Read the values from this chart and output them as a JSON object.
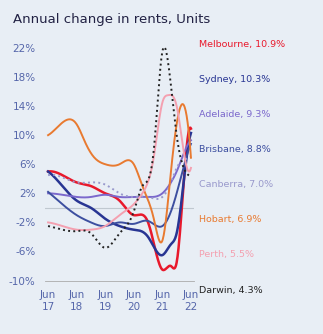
{
  "title": "Annual change in rents, Units",
  "background_color": "#e8eef5",
  "ylim": [
    -10,
    24
  ],
  "yticks": [
    -10,
    -6,
    -2,
    2,
    6,
    10,
    14,
    18,
    22
  ],
  "xlabel_years": [
    "Jun\n17",
    "Jun\n18",
    "Jun\n19",
    "Jun\n20",
    "Jun\n21",
    "Jun\n22"
  ],
  "series": {
    "Melbourne": {
      "color": "#e8192c",
      "label": "Melbourne, 10.9%",
      "label_color": "#e8192c",
      "linestyle": "solid",
      "linewidth": 1.8,
      "x": [
        0,
        0.5,
        1,
        1.5,
        2,
        2.5,
        3,
        3.5,
        4,
        4.3,
        4.5,
        4.7,
        5
      ],
      "y": [
        5.0,
        4.5,
        3.5,
        3.0,
        2.0,
        1.0,
        -1.0,
        -2.0,
        -8.5,
        -8.0,
        -7.5,
        1.0,
        10.9
      ]
    },
    "Sydney": {
      "color": "#283593",
      "label": "Sydney, 10.3%",
      "label_color": "#283593",
      "linestyle": "solid",
      "linewidth": 1.8,
      "x": [
        0,
        0.5,
        1,
        1.5,
        2,
        2.5,
        3,
        3.5,
        4,
        4.3,
        4.5,
        4.7,
        5
      ],
      "y": [
        5.0,
        3.0,
        1.0,
        0.0,
        -1.5,
        -2.5,
        -3.0,
        -4.0,
        -6.5,
        -5.0,
        -3.5,
        2.0,
        10.3
      ]
    },
    "Adelaide": {
      "color": "#7b68cc",
      "label": "Adelaide, 9.3%",
      "label_color": "#7b68cc",
      "linestyle": "solid",
      "linewidth": 1.4,
      "x": [
        0,
        0.5,
        1,
        1.5,
        2,
        2.5,
        3,
        3.5,
        4,
        4.3,
        4.5,
        4.7,
        5
      ],
      "y": [
        2.0,
        1.8,
        1.5,
        1.5,
        1.8,
        1.5,
        1.5,
        1.5,
        2.0,
        3.5,
        5.0,
        7.0,
        9.3
      ]
    },
    "Brisbane": {
      "color": "#3d4fa0",
      "label": "Brisbane, 8.8%",
      "label_color": "#3d4fa0",
      "linestyle": "solid",
      "linewidth": 1.4,
      "x": [
        0,
        0.5,
        1,
        1.5,
        2,
        2.5,
        3,
        3.5,
        4,
        4.3,
        4.5,
        4.7,
        5
      ],
      "y": [
        2.2,
        0.5,
        -1.0,
        -2.0,
        -2.5,
        -2.0,
        -2.2,
        -1.8,
        -2.5,
        -0.5,
        2.0,
        5.0,
        8.8
      ]
    },
    "Canberra": {
      "color": "#9999cc",
      "label": "Canberra, 7.0%",
      "label_color": "#9999cc",
      "linestyle": "dotted",
      "linewidth": 1.4,
      "x": [
        0,
        0.5,
        1,
        1.5,
        2,
        2.5,
        3,
        3.5,
        4,
        4.3,
        4.5,
        4.7,
        5
      ],
      "y": [
        4.5,
        4.2,
        3.5,
        3.5,
        3.2,
        2.0,
        1.5,
        1.5,
        1.5,
        3.5,
        5.5,
        6.5,
        7.0
      ]
    },
    "Hobart": {
      "color": "#e87a30",
      "label": "Hobart, 6.9%",
      "label_color": "#e87a30",
      "linestyle": "solid",
      "linewidth": 1.4,
      "x": [
        0,
        0.3,
        0.6,
        1,
        1.3,
        1.6,
        2,
        2.5,
        3,
        3.3,
        3.7,
        4,
        4.3,
        4.6,
        5
      ],
      "y": [
        10.0,
        11.0,
        12.0,
        11.5,
        9.0,
        7.0,
        6.0,
        6.0,
        6.0,
        3.0,
        -1.5,
        -4.5,
        5.0,
        13.5,
        6.9
      ]
    },
    "Perth": {
      "color": "#f4a0b0",
      "label": "Perth, 5.5%",
      "label_color": "#f4a0b0",
      "linestyle": "solid",
      "linewidth": 1.4,
      "x": [
        0,
        0.5,
        1,
        1.5,
        2,
        2.5,
        3,
        3.3,
        3.7,
        4,
        4.2,
        4.5,
        4.7,
        5
      ],
      "y": [
        -2.0,
        -2.5,
        -3.0,
        -3.0,
        -2.5,
        -1.0,
        0.5,
        2.0,
        7.0,
        14.5,
        15.5,
        14.0,
        9.0,
        5.5
      ]
    },
    "Darwin": {
      "color": "#222222",
      "label": "Darwin, 4.3%",
      "label_color": "#222222",
      "linestyle": "dotted",
      "linewidth": 1.4,
      "x": [
        0,
        0.5,
        1,
        1.5,
        2,
        2.5,
        3,
        3.3,
        3.7,
        4,
        4.2,
        4.5,
        4.7,
        5
      ],
      "y": [
        -2.5,
        -3.0,
        -3.2,
        -3.5,
        -5.5,
        -3.5,
        -0.5,
        3.0,
        8.0,
        21.5,
        20.0,
        10.0,
        6.0,
        4.3
      ]
    }
  },
  "zero_line_color": "#c0c8d0",
  "title_fontsize": 9.5,
  "tick_fontsize": 7.5,
  "legend_fontsize": 6.8
}
